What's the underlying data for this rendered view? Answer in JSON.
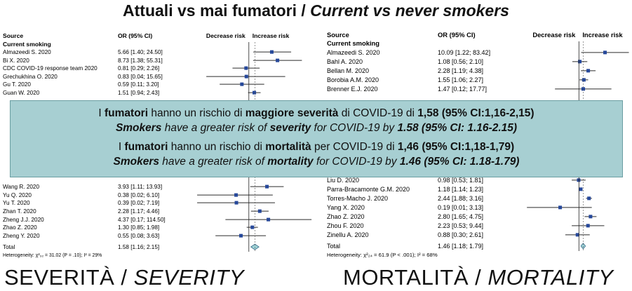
{
  "title": {
    "it": "Attuali vs mai fumatori / ",
    "en": "Current vs never smokers"
  },
  "chart_data": [
    {
      "type": "forest",
      "title": "SEVERITÀ / SEVERITY",
      "headers": {
        "source": "Source",
        "or": "OR (95% CI)",
        "decrease": "Decrease risk",
        "increase": "Increase risk"
      },
      "group": "Current smoking",
      "rows": [
        {
          "source": "Almazeedi S. 2020",
          "ci": "5.66 [1.40; 24.50]",
          "or": 5.66,
          "lo": 1.4,
          "hi": 24.5
        },
        {
          "source": "Bi X. 2020",
          "ci": "8.73 [1.38; 55.31]",
          "or": 8.73,
          "lo": 1.38,
          "hi": 55.31
        },
        {
          "source": "CDC COVID-19 response team 2020",
          "ci": "0.81 [0.29; 2.26]",
          "or": 0.81,
          "lo": 0.29,
          "hi": 2.26
        },
        {
          "source": "Grechukhina O. 2020",
          "ci": "0.83 [0.04; 15.65]",
          "or": 0.83,
          "lo": 0.04,
          "hi": 15.65
        },
        {
          "source": "Gu T. 2020",
          "ci": "0.59 [0.11; 3.20]",
          "or": 0.59,
          "lo": 0.11,
          "hi": 3.2
        },
        {
          "source": "Guan W. 2020",
          "ci": "1.51 [0.94; 2.43]",
          "or": 1.51,
          "lo": 0.94,
          "hi": 2.43
        },
        {
          "source": "Wang R. 2020",
          "ci": "3.93 [1.11; 13.93]",
          "or": 3.93,
          "lo": 1.11,
          "hi": 13.93
        },
        {
          "source": "Yu Q. 2020",
          "ci": "0.38 [0.02; 6.10]",
          "or": 0.38,
          "lo": 0.02,
          "hi": 6.1
        },
        {
          "source": "Yu T. 2020",
          "ci": "0.39 [0.02; 7.19]",
          "or": 0.39,
          "lo": 0.02,
          "hi": 7.19
        },
        {
          "source": "Zhan T. 2020",
          "ci": "2.28 [1.17; 4.46]",
          "or": 2.28,
          "lo": 1.17,
          "hi": 4.46
        },
        {
          "source": "Zheng J.J. 2020",
          "ci": "4.37 [0.17; 114.50]",
          "or": 4.37,
          "lo": 0.17,
          "hi": 114.5
        },
        {
          "source": "Zhao Z. 2020",
          "ci": "1.30 [0.85; 1.98]",
          "or": 1.3,
          "lo": 0.85,
          "hi": 1.98
        },
        {
          "source": "Zheng Y. 2020",
          "ci": "0.55 [0.08; 3.63]",
          "or": 0.55,
          "lo": 0.08,
          "hi": 3.63
        }
      ],
      "total": {
        "source": "Total",
        "ci": "1.58 [1.16; 2.15]",
        "or": 1.58,
        "lo": 1.16,
        "hi": 2.15
      },
      "heterogeneity": "Heterogeneity: χ²₃₂ = 31.02 (P = .10); I² = 29%"
    },
    {
      "type": "forest",
      "title": "MORTALITÀ / MORTALITY",
      "headers": {
        "source": "Source",
        "or": "OR (95% CI)",
        "decrease": "Decrease risk",
        "increase": "Increase risk"
      },
      "group": "Current smoking",
      "rows": [
        {
          "source": "Almazeedi S. 2020",
          "ci": "10.09 [1.22; 83.42]",
          "or": 10.09,
          "lo": 1.22,
          "hi": 83.42
        },
        {
          "source": "Bahl A. 2020",
          "ci": "1.08 [0.56; 2.10]",
          "or": 1.08,
          "lo": 0.56,
          "hi": 2.1
        },
        {
          "source": "Bellan M. 2020",
          "ci": "2.28 [1.19; 4.38]",
          "or": 2.28,
          "lo": 1.19,
          "hi": 4.38
        },
        {
          "source": "Borobia A.M. 2020",
          "ci": "1.55 [1.06; 2.27]",
          "or": 1.55,
          "lo": 1.06,
          "hi": 2.27
        },
        {
          "source": "Brenner E.J. 2020",
          "ci": "1.47 [0.12; 17.77]",
          "or": 1.47,
          "lo": 0.12,
          "hi": 17.77
        },
        {
          "source": "Liu D. 2020",
          "ci": "0.98 [0.53; 1.81]",
          "or": 0.98,
          "lo": 0.53,
          "hi": 1.81
        },
        {
          "source": "Parra-Bracamonte G.M. 2020",
          "ci": "1.18 [1.14; 1.23]",
          "or": 1.18,
          "lo": 1.14,
          "hi": 1.23
        },
        {
          "source": "Torres-Macho J. 2020",
          "ci": "2.44 [1.88; 3.16]",
          "or": 2.44,
          "lo": 1.88,
          "hi": 3.16
        },
        {
          "source": "Yang X. 2020",
          "ci": "0.19 [0.01; 3.13]",
          "or": 0.19,
          "lo": 0.01,
          "hi": 3.13
        },
        {
          "source": "Zhao Z. 2020",
          "ci": "2.80 [1.65; 4.75]",
          "or": 2.8,
          "lo": 1.65,
          "hi": 4.75
        },
        {
          "source": "Zhou F. 2020",
          "ci": "2.23 [0.53; 9.44]",
          "or": 2.23,
          "lo": 0.53,
          "hi": 9.44
        },
        {
          "source": "Zinellu A. 2020",
          "ci": "0.88 [0.30; 2.61]",
          "or": 0.88,
          "lo": 0.3,
          "hi": 2.61
        }
      ],
      "total": {
        "source": "Total",
        "ci": "1.46 [1.18; 1.79]",
        "or": 1.46,
        "lo": 1.18,
        "hi": 1.79
      },
      "heterogeneity": "Heterogeneity: χ²₂₄ = 61.9 (P < .001); I² = 68%"
    }
  ],
  "overlay": {
    "sev_it": [
      "I ",
      "fumatori",
      " hanno un rischio di ",
      "maggiore severità",
      " di COVID-19 di ",
      "1,58 (95% CI:1,16-2,15)"
    ],
    "sev_en": [
      "Smokers",
      " have a greater risk of ",
      "severity",
      " for COVID-19 by ",
      "1.58",
      "  (95% CI: 1.16-2.15)"
    ],
    "mort_it": [
      "I ",
      "fumatori",
      " hanno un rischio di ",
      "mortalità",
      " per COVID-19 di ",
      "1,46 (95% CI:1,18-1,79)"
    ],
    "mort_en": [
      "Smokers",
      " have a greater risk of ",
      "mortality",
      " for COVID-19 by ",
      "1.46",
      "  (95% CI: 1.18-1.79)"
    ]
  },
  "bottom": {
    "left_it": "SEVERITÀ / ",
    "left_en": "SEVERITY",
    "right_it": "MORTALITÀ / ",
    "right_en": "MORTALITY"
  },
  "colors": {
    "marker": "#26489a",
    "line": "#2b2b2b",
    "overlay_bg": "#a7cfd2",
    "total": "#9fd3d6"
  }
}
